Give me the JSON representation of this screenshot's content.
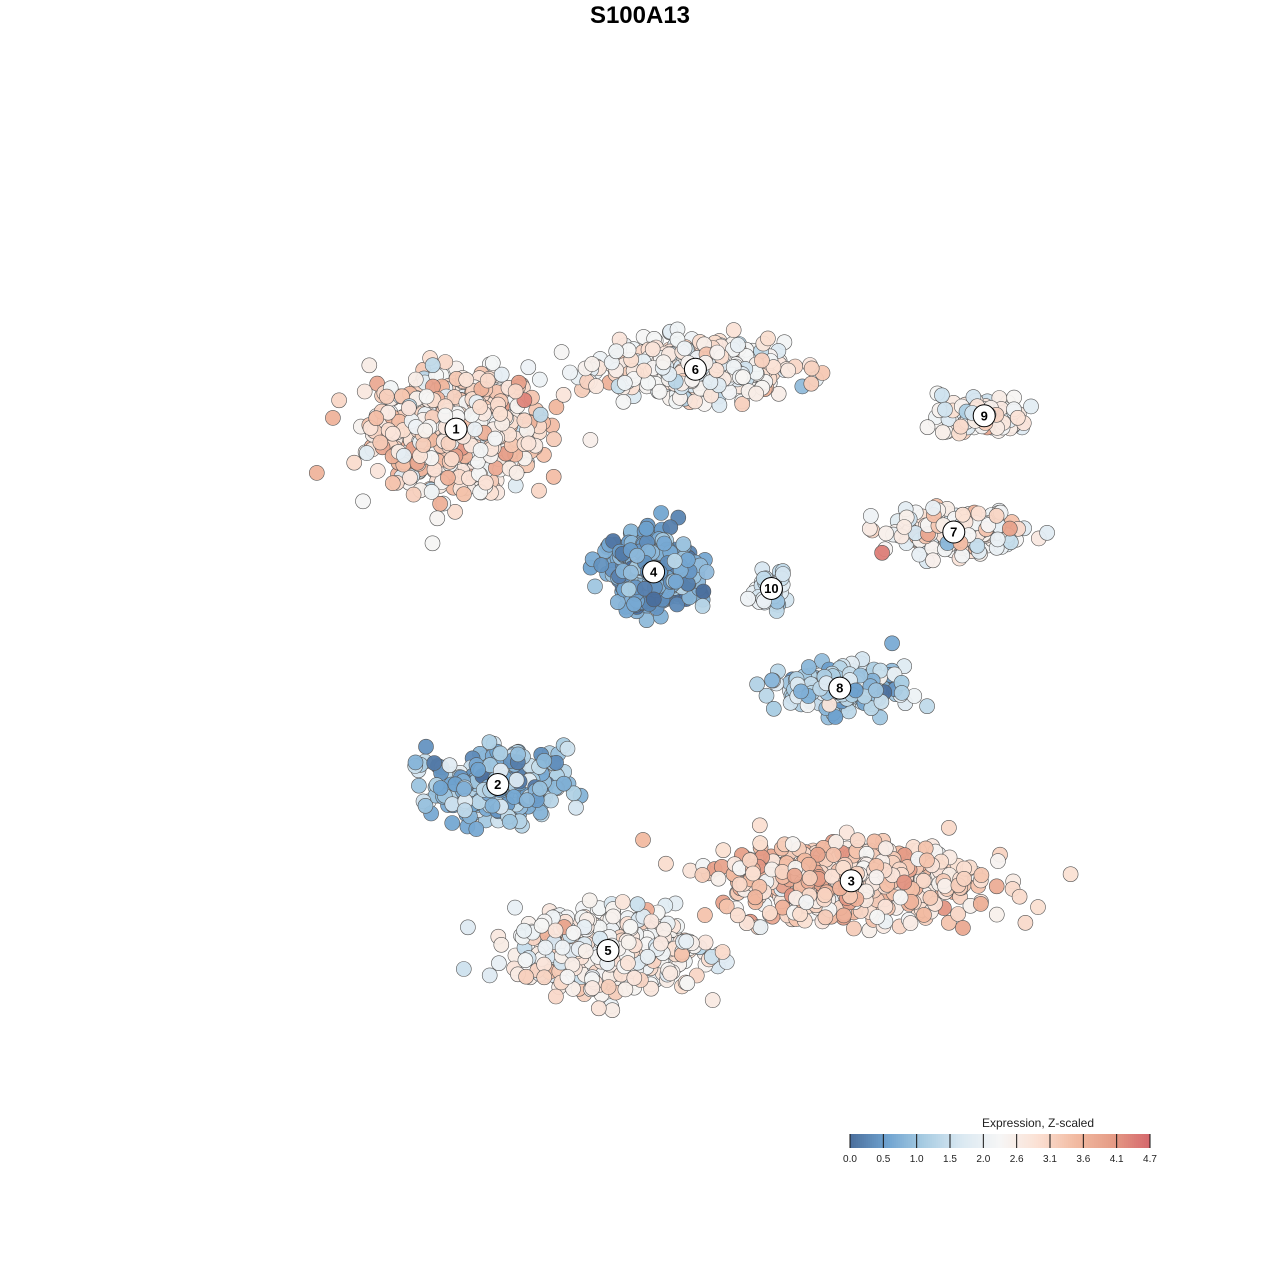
{
  "chart_data": {
    "type": "scatter",
    "title": "S100A13",
    "legend": {
      "title": "Expression, Z-scaled",
      "placement": "bottom-right",
      "ticks": [
        "0.0",
        "0.5",
        "1.0",
        "1.5",
        "2.0",
        "2.6",
        "3.1",
        "3.6",
        "4.1",
        "4.7"
      ],
      "colors": [
        "#4a6e9c",
        "#6fa3d0",
        "#a9cde3",
        "#dbe9f2",
        "#f6f6f6",
        "#fbe1d4",
        "#f2bba2",
        "#e59c86",
        "#d5676c"
      ],
      "value_range": [
        0.0,
        4.7
      ]
    },
    "clusters": [
      {
        "label": "1",
        "x": -5.5,
        "y": 6.2,
        "spread_x": 2.4,
        "spread_y": 1.9,
        "n": 700,
        "mean_expr": 2.85,
        "sd_expr": 0.55
      },
      {
        "label": "6",
        "x": 0.8,
        "y": 8.0,
        "spread_x": 2.6,
        "spread_y": 0.9,
        "n": 420,
        "mean_expr": 2.4,
        "sd_expr": 0.5
      },
      {
        "label": "9",
        "x": 8.4,
        "y": 6.6,
        "spread_x": 1.3,
        "spread_y": 0.7,
        "n": 110,
        "mean_expr": 2.5,
        "sd_expr": 0.5
      },
      {
        "label": "7",
        "x": 7.6,
        "y": 3.1,
        "spread_x": 2.0,
        "spread_y": 0.7,
        "n": 200,
        "mean_expr": 2.5,
        "sd_expr": 0.55
      },
      {
        "label": "4",
        "x": -0.3,
        "y": 1.9,
        "spread_x": 1.2,
        "spread_y": 1.1,
        "n": 520,
        "mean_expr": 0.6,
        "sd_expr": 0.35
      },
      {
        "label": "10",
        "x": 2.8,
        "y": 1.4,
        "spread_x": 0.5,
        "spread_y": 0.6,
        "n": 45,
        "mean_expr": 1.6,
        "sd_expr": 0.5
      },
      {
        "label": "8",
        "x": 4.6,
        "y": -1.6,
        "spread_x": 1.6,
        "spread_y": 0.7,
        "n": 260,
        "mean_expr": 1.2,
        "sd_expr": 0.55
      },
      {
        "label": "2",
        "x": -4.4,
        "y": -4.5,
        "spread_x": 2.0,
        "spread_y": 1.1,
        "n": 280,
        "mean_expr": 1.0,
        "sd_expr": 0.5
      },
      {
        "label": "3",
        "x": 4.9,
        "y": -7.4,
        "spread_x": 3.6,
        "spread_y": 1.3,
        "n": 620,
        "mean_expr": 3.1,
        "sd_expr": 0.5
      },
      {
        "label": "5",
        "x": -1.5,
        "y": -9.5,
        "spread_x": 2.7,
        "spread_y": 1.3,
        "n": 520,
        "mean_expr": 2.5,
        "sd_expr": 0.45
      }
    ],
    "xlim": [
      -12.5,
      12.5
    ],
    "ylim": [
      -14,
      14
    ],
    "grid": false
  }
}
